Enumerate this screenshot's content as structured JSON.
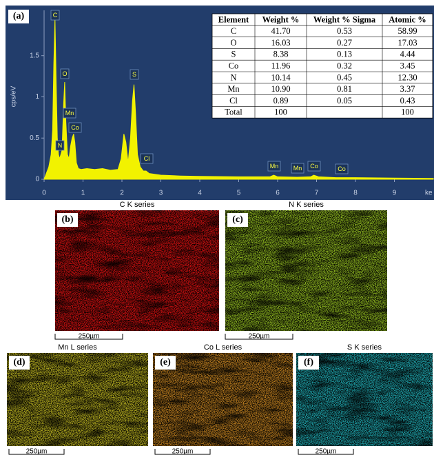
{
  "chart_data": {
    "type": "area",
    "panel": "(a)",
    "ylabel": "cps/eV",
    "xlabel": "ke",
    "color": "#f2f200",
    "x": [
      0,
      0.12,
      0.18,
      0.22,
      0.25,
      0.28,
      0.31,
      0.34,
      0.37,
      0.4,
      0.43,
      0.46,
      0.5,
      0.53,
      0.56,
      0.6,
      0.64,
      0.68,
      0.72,
      0.76,
      0.79,
      0.83,
      0.88,
      0.95,
      1.1,
      1.3,
      1.5,
      1.7,
      1.9,
      1.98,
      2.05,
      2.1,
      2.16,
      2.22,
      2.27,
      2.31,
      2.35,
      2.4,
      2.47,
      2.55,
      2.62,
      2.7,
      3,
      3.5,
      4,
      5,
      5.8,
      5.9,
      6,
      6.5,
      6.85,
      6.93,
      7.05,
      7.5,
      8,
      9,
      10
    ],
    "values": [
      0,
      0.15,
      0.3,
      0.6,
      1.4,
      1.95,
      1.2,
      0.5,
      0.3,
      0.25,
      0.3,
      0.35,
      0.9,
      1.18,
      0.7,
      0.3,
      0.25,
      0.4,
      0.5,
      0.55,
      0.45,
      0.2,
      0.13,
      0.12,
      0.13,
      0.12,
      0.13,
      0.11,
      0.12,
      0.25,
      0.55,
      0.45,
      0.2,
      0.5,
      0.95,
      1.15,
      0.8,
      0.3,
      0.15,
      0.1,
      0.1,
      0.07,
      0.05,
      0.04,
      0.035,
      0.03,
      0.03,
      0.05,
      0.03,
      0.025,
      0.03,
      0.05,
      0.03,
      0.02,
      0.02,
      0.015,
      0.01
    ],
    "xlim": [
      0,
      10
    ],
    "ylim": [
      0,
      2.05
    ],
    "xticks": [
      0,
      1,
      2,
      3,
      4,
      5,
      6,
      7,
      8,
      9
    ],
    "yticks": [
      0,
      0.5,
      1,
      1.5
    ],
    "peak_labels": [
      "C",
      "O",
      "Mn",
      "Co",
      "N",
      "S",
      "Cl",
      "Mn",
      "Mn",
      "Co",
      "Co"
    ]
  },
  "table": {
    "header": [
      "Element",
      "Weight %",
      "Weight % Sigma",
      "Atomic %"
    ],
    "rows": [
      [
        "C",
        "41.70",
        "0.53",
        "58.99"
      ],
      [
        "O",
        "16.03",
        "0.27",
        "17.03"
      ],
      [
        "S",
        "8.38",
        "0.13",
        "4.44"
      ],
      [
        "Co",
        "11.96",
        "0.32",
        "3.45"
      ],
      [
        "N",
        "10.14",
        "0.45",
        "12.30"
      ],
      [
        "Mn",
        "10.90",
        "0.81",
        "3.37"
      ],
      [
        "Cl",
        "0.89",
        "0.05",
        "0.43"
      ],
      [
        "Total",
        "100",
        "",
        "100"
      ]
    ]
  },
  "maps": [
    {
      "panel": "(b)",
      "title": "C K series",
      "scale": "250µm"
    },
    {
      "panel": "(c)",
      "title": "N K series",
      "scale": "250µm"
    },
    {
      "panel": "(d)",
      "title": "Mn L series",
      "scale": "250µm"
    },
    {
      "panel": "(e)",
      "title": "Co L series",
      "scale": "250µm"
    },
    {
      "panel": "(f)",
      "title": "S K series",
      "scale": "250µm"
    }
  ]
}
